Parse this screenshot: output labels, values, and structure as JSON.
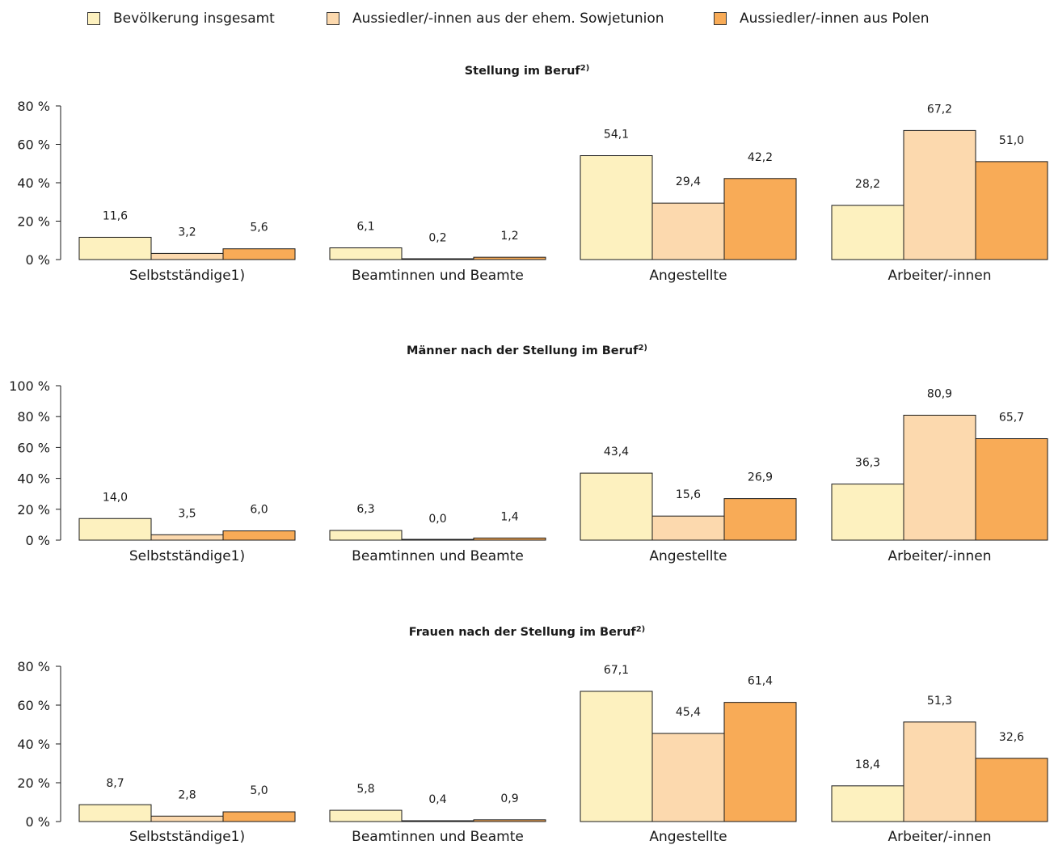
{
  "legend": {
    "items": [
      {
        "label": "Bevölkerung insgesamt",
        "color": "#fdf1bf"
      },
      {
        "label": "Aussiedler/-innen aus der ehem. Sowjetunion",
        "color": "#fcd9ae"
      },
      {
        "label": "Aussiedler/-innen aus Polen",
        "color": "#f8ab57"
      }
    ]
  },
  "chart_data": [
    {
      "type": "bar",
      "title": "Stellung im Beruf",
      "title_sup": "2)",
      "categories": [
        "Selbstständige1)",
        "Beamtinnen und Beamte",
        "Angestellte",
        "Arbeiter/-innen"
      ],
      "ylim": [
        0,
        80
      ],
      "yticks": [
        "0 %",
        "20 %",
        "40 %",
        "60 %",
        "80 %"
      ],
      "series": [
        {
          "name": "Bevölkerung insgesamt",
          "values": [
            11.6,
            6.1,
            54.1,
            28.2
          ],
          "labels": [
            "11,6",
            "6,1",
            "54,1",
            "28,2"
          ]
        },
        {
          "name": "Aussiedler/-innen aus der ehem. Sowjetunion",
          "values": [
            3.2,
            0.2,
            29.4,
            67.2
          ],
          "labels": [
            "3,2",
            "0,2",
            "29,4",
            "67,2"
          ]
        },
        {
          "name": "Aussiedler/-innen aus Polen",
          "values": [
            5.6,
            1.2,
            42.2,
            51.0
          ],
          "labels": [
            "5,6",
            "1,2",
            "42,2",
            "51,0"
          ]
        }
      ]
    },
    {
      "type": "bar",
      "title": "Männer nach der Stellung im Beruf",
      "title_sup": "2)",
      "categories": [
        "Selbstständige1)",
        "Beamtinnen und Beamte",
        "Angestellte",
        "Arbeiter/-innen"
      ],
      "ylim": [
        0,
        100
      ],
      "yticks": [
        "0 %",
        "20 %",
        "40 %",
        "60 %",
        "80 %",
        "100 %"
      ],
      "series": [
        {
          "name": "Bevölkerung insgesamt",
          "values": [
            14.0,
            6.3,
            43.4,
            36.3
          ],
          "labels": [
            "14,0",
            "6,3",
            "43,4",
            "36,3"
          ]
        },
        {
          "name": "Aussiedler/-innen aus der ehem. Sowjetunion",
          "values": [
            3.5,
            0.0,
            15.6,
            80.9
          ],
          "labels": [
            "3,5",
            "0,0",
            "15,6",
            "80,9"
          ]
        },
        {
          "name": "Aussiedler/-innen aus Polen",
          "values": [
            6.0,
            1.4,
            26.9,
            65.7
          ],
          "labels": [
            "6,0",
            "1,4",
            "26,9",
            "65,7"
          ]
        }
      ]
    },
    {
      "type": "bar",
      "title": "Frauen nach der Stellung im Beruf",
      "title_sup": "2)",
      "categories": [
        "Selbstständige1)",
        "Beamtinnen und Beamte",
        "Angestellte",
        "Arbeiter/-innen"
      ],
      "ylim": [
        0,
        80
      ],
      "yticks": [
        "0 %",
        "20 %",
        "40 %",
        "60 %",
        "80 %"
      ],
      "series": [
        {
          "name": "Bevölkerung insgesamt",
          "values": [
            8.7,
            5.8,
            67.1,
            18.4
          ],
          "labels": [
            "8,7",
            "5,8",
            "67,1",
            "18,4"
          ]
        },
        {
          "name": "Aussiedler/-innen aus der ehem. Sowjetunion",
          "values": [
            2.8,
            0.4,
            45.4,
            51.3
          ],
          "labels": [
            "2,8",
            "0,4",
            "45,4",
            "51,3"
          ]
        },
        {
          "name": "Aussiedler/-innen aus Polen",
          "values": [
            5.0,
            0.9,
            61.4,
            32.6
          ],
          "labels": [
            "5,0",
            "0,9",
            "61,4",
            "32,6"
          ]
        }
      ]
    }
  ]
}
